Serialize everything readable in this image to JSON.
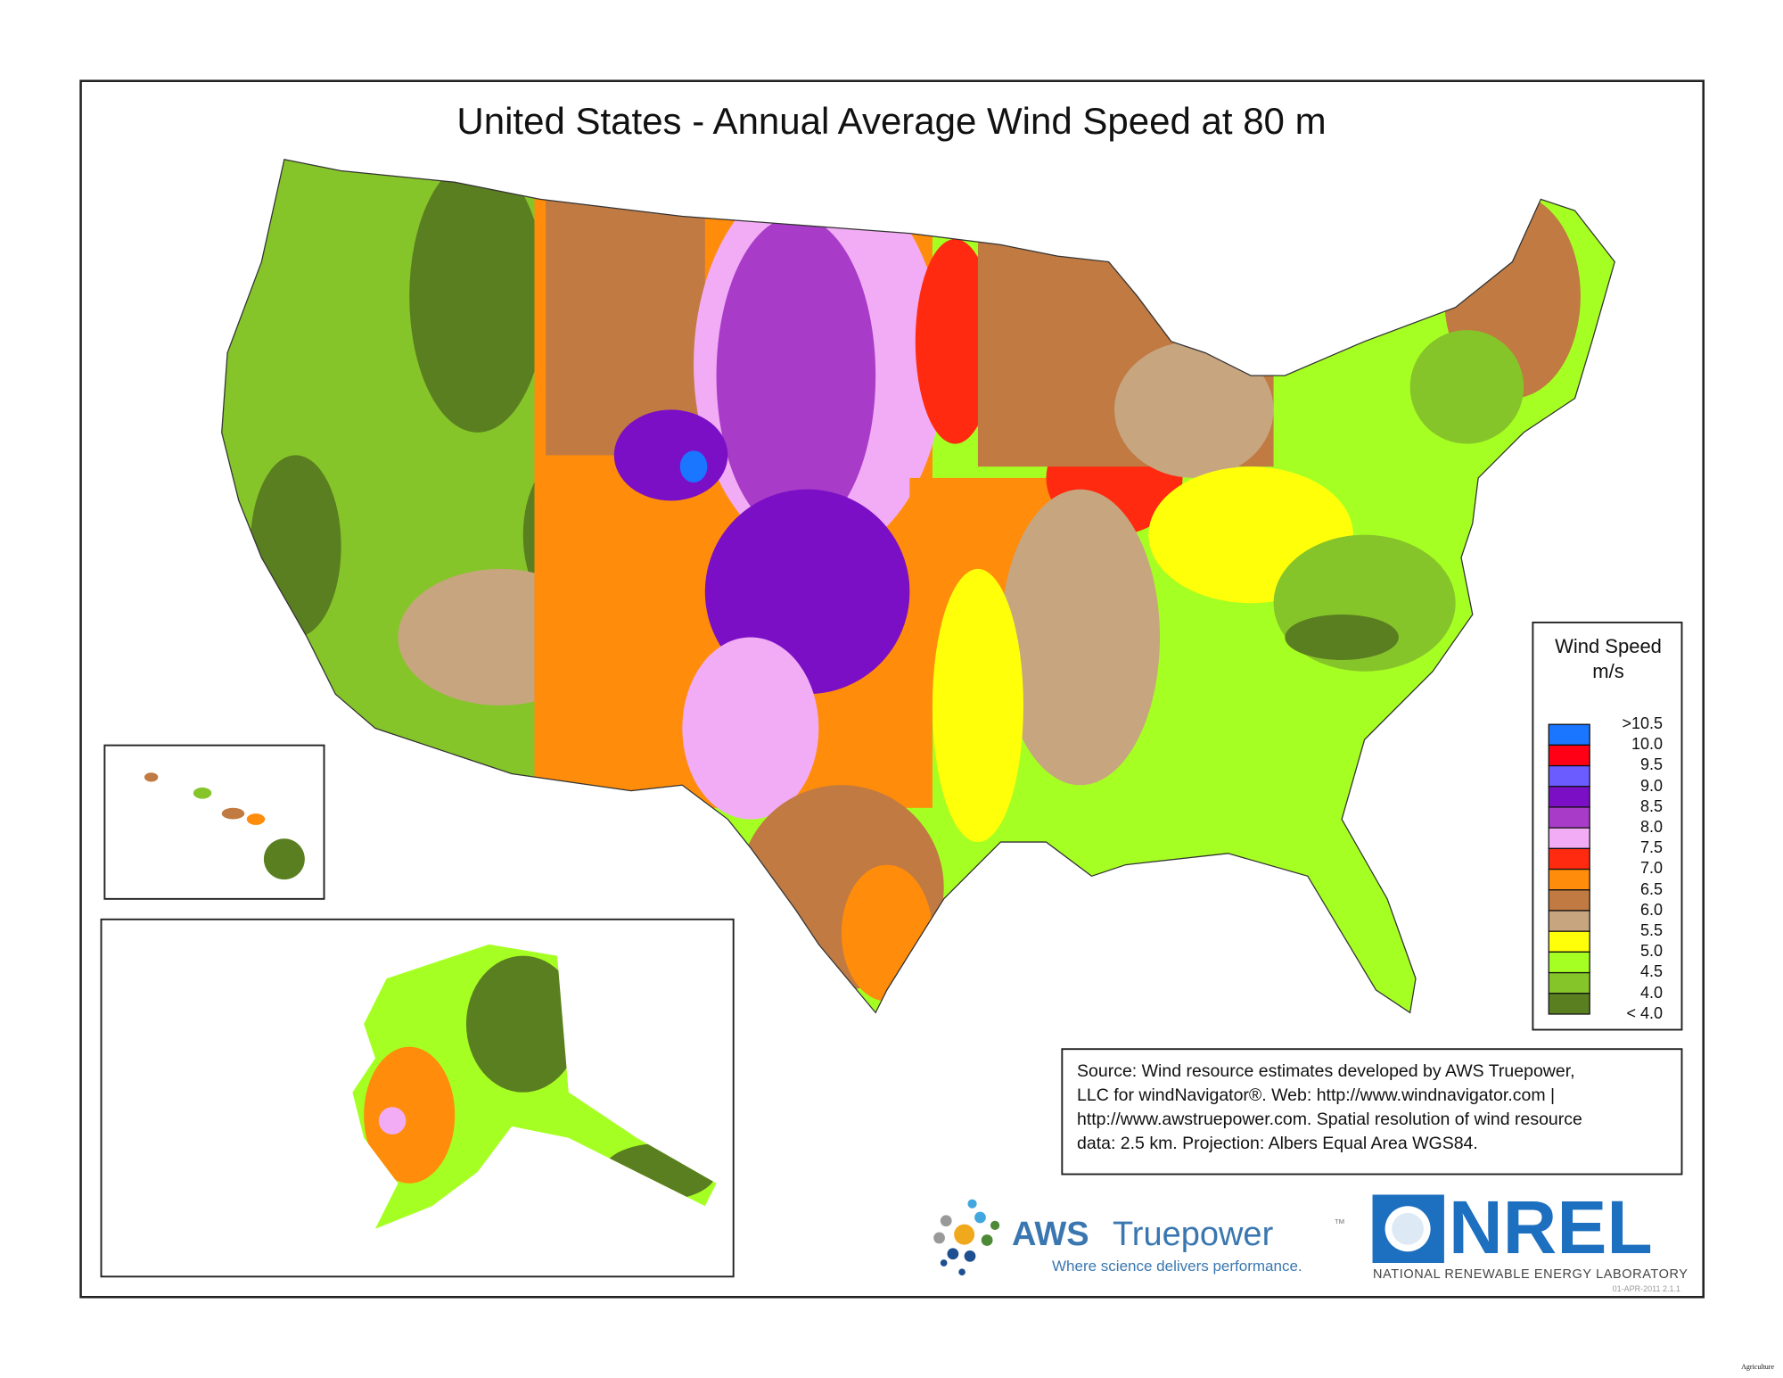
{
  "title": "United States - Annual Average Wind Speed at 80 m",
  "legend": {
    "title_line1": "Wind Speed",
    "title_line2": "m/s",
    "items": [
      {
        "label": ">10.5",
        "color": "#1a75ff"
      },
      {
        "label": "10.0",
        "color": "#ff0015"
      },
      {
        "label": "9.5",
        "color": "#6a5cff"
      },
      {
        "label": "9.0",
        "color": "#7a0fc6"
      },
      {
        "label": "8.5",
        "color": "#a93bc9"
      },
      {
        "label": "8.0",
        "color": "#f2acf5"
      },
      {
        "label": "7.5",
        "color": "#ff2a10"
      },
      {
        "label": "7.0",
        "color": "#ff8c0a"
      },
      {
        "label": "6.5",
        "color": "#c07a42"
      },
      {
        "label": "6.0",
        "color": "#c7a57f"
      },
      {
        "label": "5.5",
        "color": "#ffff0a"
      },
      {
        "label": "5.0",
        "color": "#a6ff22"
      },
      {
        "label": "4.5",
        "color": "#86c52a"
      },
      {
        "label": "4.0",
        "color": "#5a7f20"
      }
    ],
    "bottom_label": "< 4.0"
  },
  "source": {
    "lines": [
      "Source: Wind resource estimates developed by AWS Truepower,",
      "LLC for windNavigator®. Web: http://www.windnavigator.com |",
      "http://www.awstruepower.com. Spatial resolution of wind resource",
      "data: 2.5 km. Projection: Albers Equal Area WGS84."
    ]
  },
  "logos": {
    "aws_name_bold": "AWS",
    "aws_name_light": "Truepower",
    "aws_tm": "™",
    "aws_tagline": "Where science delivers performance.",
    "nrel_name": "NREL",
    "nrel_full": "NATIONAL RENEWABLE ENERGY LABORATORY"
  },
  "version": "01-APR-2011 2.1.1",
  "footer_tag": "Agriculture"
}
